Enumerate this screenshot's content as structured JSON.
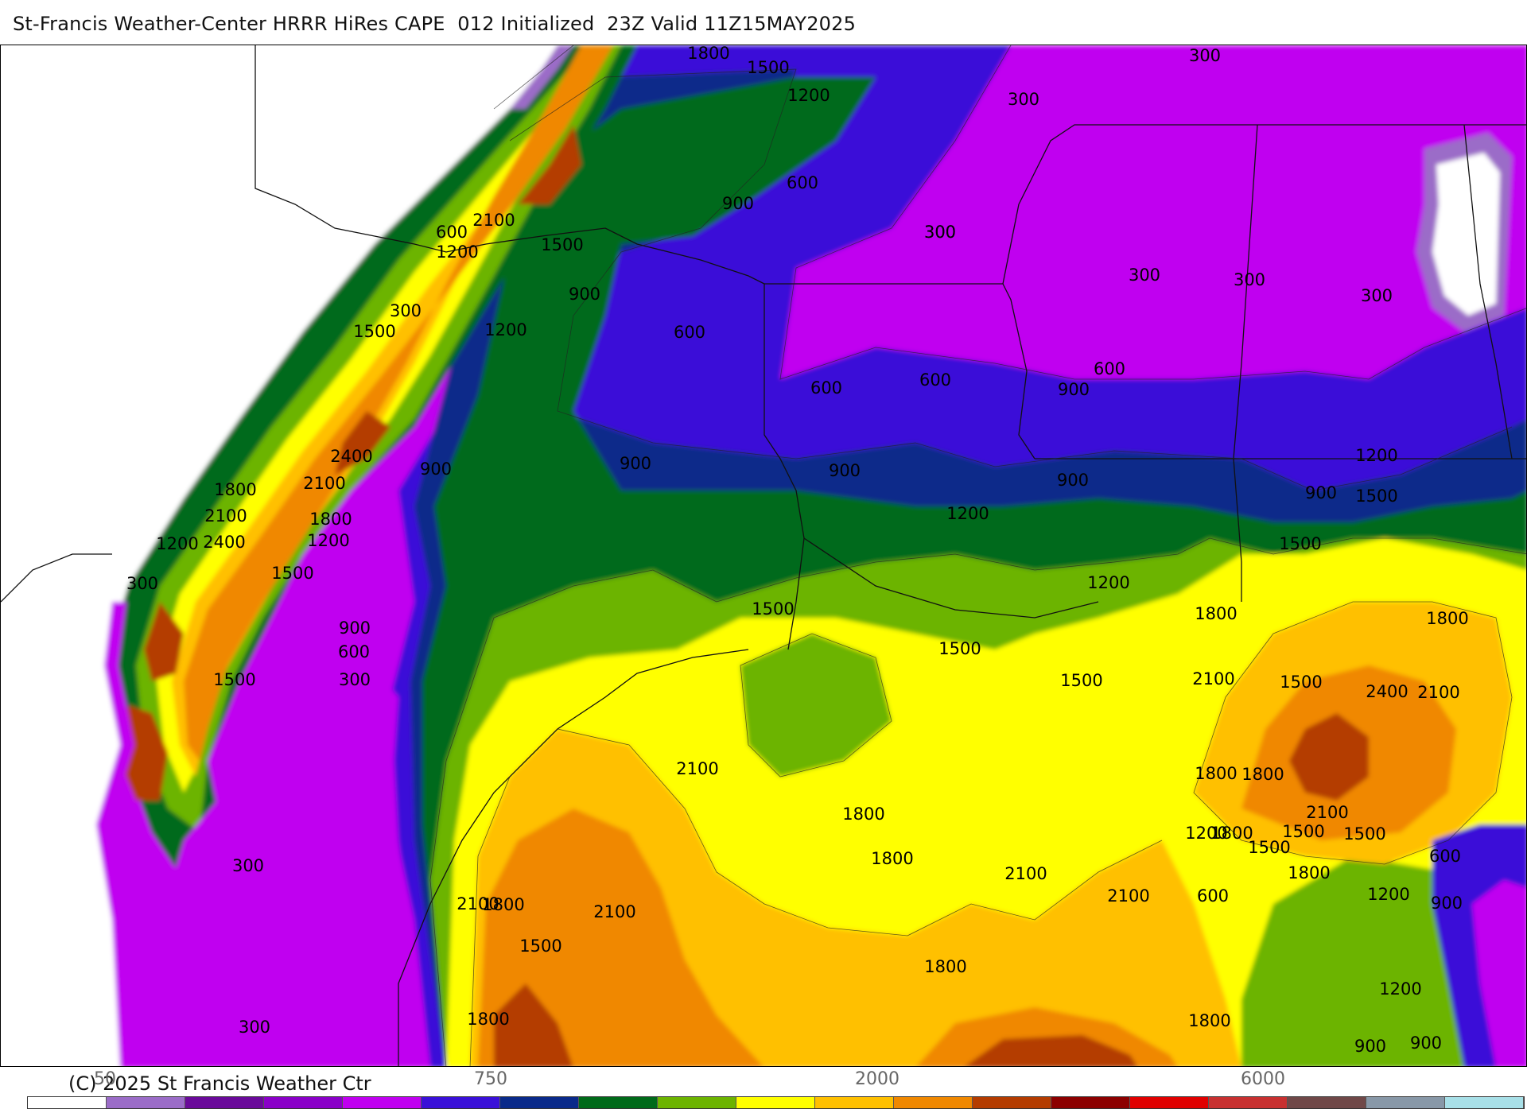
{
  "header": {
    "title": "St-Francis Weather-Center HRRR HiRes CAPE  012 Initialized  23Z Valid 11Z15MAY2025"
  },
  "footer": {
    "copyright": "(C) 2025 St Francis Weather Ctr",
    "tick_labels": [
      "50",
      "750",
      "2000",
      "6000"
    ]
  },
  "legend": {
    "colors": [
      "#ffffff",
      "#9b6cc8",
      "#6a0a9a",
      "#8a00c8",
      "#c000f0",
      "#3a10d8",
      "#0a2a8a",
      "#006a1a",
      "#6cb400",
      "#ffff00",
      "#ffc000",
      "#f08800",
      "#b43c00",
      "#8c0000",
      "#e00000",
      "#c83030",
      "#704848",
      "#8898a8",
      "#a8e0e8"
    ]
  },
  "contour_labels": [
    "1800",
    "1500",
    "1200",
    "300",
    "300",
    "300",
    "300",
    "300",
    "300",
    "300",
    "600",
    "900",
    "300",
    "2100",
    "600",
    "1200",
    "1500",
    "900",
    "300",
    "1500",
    "1200",
    "600",
    "600",
    "600",
    "2400",
    "2100",
    "1800",
    "2100",
    "1800",
    "1200",
    "2400",
    "1200",
    "300",
    "1500",
    "900",
    "600",
    "300",
    "1500",
    "900",
    "900",
    "900",
    "900",
    "1200",
    "1200",
    "900",
    "600",
    "900",
    "1200",
    "1500",
    "1500",
    "1500",
    "1800",
    "1800",
    "1500",
    "1500",
    "1500",
    "2100",
    "2400",
    "1800",
    "2100",
    "1800",
    "1800",
    "1500",
    "1500",
    "1800",
    "1200",
    "900",
    "600",
    "1800",
    "1500",
    "2100",
    "2100",
    "1800",
    "1800",
    "2100",
    "1800",
    "2100",
    "2400",
    "2100",
    "1800",
    "1500",
    "1200",
    "900",
    "900",
    "600",
    "300",
    "300",
    "1800",
    "1200",
    "2100",
    "1800",
    "1800"
  ]
}
